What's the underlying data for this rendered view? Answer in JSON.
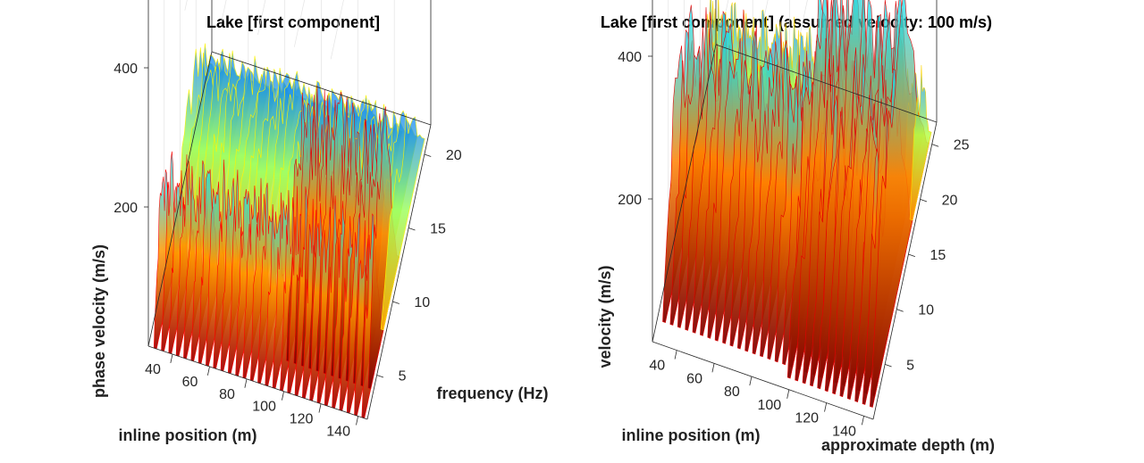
{
  "chart_data": [
    {
      "type": "surface",
      "title": "Lake [first component]",
      "xlabel": "inline position (m)",
      "ylabel": "frequency (Hz)",
      "zlabel": "phase velocity (m/s)",
      "x_ticks": [
        40,
        60,
        80,
        100,
        120,
        140
      ],
      "y_ticks": [
        5,
        10,
        15,
        20
      ],
      "z_ticks": [
        200,
        400
      ],
      "xlim": [
        27,
        145
      ],
      "ylim": [
        2,
        22
      ],
      "zlim": [
        0,
        500
      ],
      "colormap": "jet",
      "slices": {
        "x_start": 30,
        "x_step": 4,
        "count": 29
      },
      "bands": [
        {
          "from_x": 30,
          "to_x": 145,
          "y_lo": 2,
          "y_hi": 8,
          "velocity": 190,
          "strength": 0.95
        },
        {
          "from_x": 95,
          "to_x": 145,
          "y_lo": 4,
          "y_hi": 13,
          "velocity": 240,
          "strength": 1.0
        },
        {
          "from_x": 30,
          "to_x": 145,
          "y_lo": 8,
          "y_hi": 21,
          "velocity": 220,
          "strength": 0.55
        }
      ]
    },
    {
      "type": "surface",
      "title": "Lake [first component] (assumed velocity: 100 m/s)",
      "xlabel": "inline position (m)",
      "ylabel": "approximate depth (m)",
      "zlabel": "velocity (m/s)",
      "x_ticks": [
        40,
        60,
        80,
        100,
        120,
        140
      ],
      "y_ticks": [
        5,
        10,
        15,
        20,
        25
      ],
      "z_ticks": [
        200,
        400
      ],
      "xlim": [
        27,
        145
      ],
      "ylim": [
        0,
        27
      ],
      "zlim": [
        0,
        500
      ],
      "colormap": "jet",
      "slices": {
        "x_start": 30,
        "x_step": 4,
        "count": 29
      },
      "bands": [
        {
          "from_x": 30,
          "to_x": 145,
          "y_lo": 2,
          "y_hi": 18,
          "velocity": 260,
          "strength": 1.0
        },
        {
          "from_x": 95,
          "to_x": 145,
          "y_lo": 1,
          "y_hi": 25,
          "velocity": 300,
          "strength": 1.0
        },
        {
          "from_x": 30,
          "to_x": 145,
          "y_lo": 18,
          "y_hi": 26,
          "velocity": 200,
          "strength": 0.6
        }
      ]
    }
  ]
}
